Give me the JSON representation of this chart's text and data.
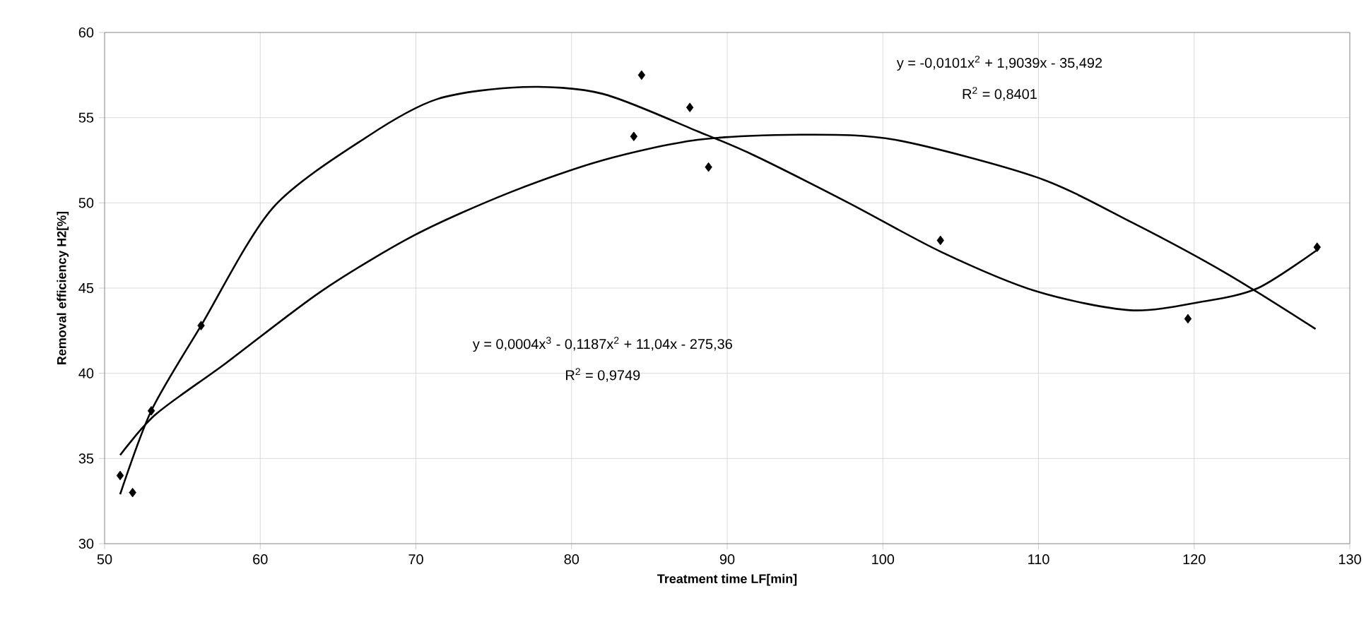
{
  "chart_data": {
    "type": "line",
    "xlabel": "Treatment time LF[min]",
    "ylabel": "Removal efficiency H2[%]",
    "xlim": [
      50,
      130
    ],
    "xticks": [
      50,
      60,
      70,
      80,
      90,
      100,
      110,
      120,
      130
    ],
    "ylim": [
      30,
      60
    ],
    "yticks": [
      30,
      35,
      40,
      45,
      50,
      55,
      60
    ],
    "grid": true,
    "marker": "diamond",
    "series": [
      {
        "type": "scatter",
        "color": "#000000",
        "x": [
          51.0,
          51.8,
          53.0,
          56.2,
          84.0,
          84.5,
          87.6,
          88.8,
          103.7,
          119.6,
          127.9
        ],
        "values": [
          34.0,
          33.0,
          37.8,
          42.8,
          53.9,
          57.5,
          55.6,
          52.1,
          47.8,
          43.2,
          47.4
        ]
      },
      {
        "color": "#000000",
        "marker": "none",
        "x": [
          51.0,
          53.0,
          56.2,
          60.8,
          66.9,
          71.4,
          76.9,
          82.0,
          88.1,
          91.7,
          97.8,
          103.8,
          109.9,
          115.9,
          120.5,
          124.1,
          128.0
        ],
        "values": [
          32.9,
          37.8,
          42.8,
          49.7,
          53.9,
          56.1,
          56.8,
          56.4,
          54.2,
          52.8,
          50.0,
          47.1,
          44.8,
          43.7,
          44.2,
          45.0,
          47.3
        ]
      },
      {
        "color": "#000000",
        "marker": "none",
        "x": [
          51.0,
          53.3,
          57.8,
          63.9,
          69.9,
          76.0,
          82.0,
          88.1,
          94.7,
          100.8,
          109.9,
          115.9,
          122.0,
          127.8
        ],
        "values": [
          35.2,
          37.6,
          40.6,
          44.8,
          48.1,
          50.6,
          52.5,
          53.7,
          54.0,
          53.7,
          51.5,
          48.9,
          45.9,
          42.6
        ]
      }
    ],
    "annotations": [
      "y = -0,0101x$^{2}$ + 1,9039x - 35,492",
      "R$^{2}$ = 0,8401",
      "y = 0,0004x$^{3}$ - 0,1187x$^{2}$ + 11,04x - 275,36",
      "R$^{2}$ = 0,9749"
    ]
  }
}
